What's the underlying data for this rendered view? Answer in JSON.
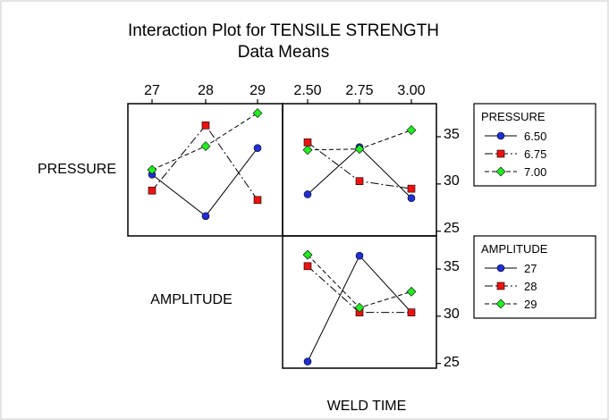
{
  "chart_data": {
    "type": "line",
    "title": "Interaction Plot for TENSILE STRENGTH",
    "subtitle": "Data Means",
    "factors": [
      {
        "name": "PRESSURE",
        "levels": [
          "6.50",
          "6.75",
          "7.00"
        ]
      },
      {
        "name": "AMPLITUDE",
        "levels": [
          "27",
          "28",
          "29"
        ]
      },
      {
        "name": "WELD TIME",
        "levels": [
          "2.50",
          "2.75",
          "3.00"
        ]
      }
    ],
    "y_axis": {
      "ylim": [
        24.5,
        38.5
      ],
      "ticks": [
        "25",
        "30",
        "35"
      ]
    },
    "colors": {
      "blue": "#1f2fd6",
      "red": "#ee1111",
      "green": "#22ee22"
    },
    "legends": [
      {
        "title": "PRESSURE",
        "items": [
          {
            "label": "6.50",
            "color": "blue",
            "marker": "circle",
            "dash": "solid"
          },
          {
            "label": "6.75",
            "color": "red",
            "marker": "square",
            "dash": "dashdot"
          },
          {
            "label": "7.00",
            "color": "green",
            "marker": "diamond",
            "dash": "dashed"
          }
        ]
      },
      {
        "title": "AMPLITUDE",
        "items": [
          {
            "label": "27",
            "color": "blue",
            "marker": "circle",
            "dash": "solid"
          },
          {
            "label": "28",
            "color": "red",
            "marker": "square",
            "dash": "dashdot"
          },
          {
            "label": "29",
            "color": "green",
            "marker": "diamond",
            "dash": "dashed"
          }
        ]
      }
    ],
    "panels": [
      {
        "id": "pressure-by-amplitude",
        "row_factor": "PRESSURE",
        "x_factor": "AMPLITUDE",
        "x": [
          "27",
          "28",
          "29"
        ],
        "series": [
          {
            "name": "6.50",
            "values": [
              31.0,
              26.6,
              33.8
            ]
          },
          {
            "name": "6.75",
            "values": [
              29.3,
              36.2,
              28.3
            ]
          },
          {
            "name": "7.00",
            "values": [
              31.5,
              34.0,
              37.5
            ]
          }
        ]
      },
      {
        "id": "pressure-by-weld-time",
        "row_factor": "PRESSURE",
        "x_factor": "WELD TIME",
        "x": [
          "2.50",
          "2.75",
          "3.00"
        ],
        "series": [
          {
            "name": "6.50",
            "values": [
              28.9,
              33.9,
              28.5
            ]
          },
          {
            "name": "6.75",
            "values": [
              34.4,
              30.3,
              29.5
            ]
          },
          {
            "name": "7.00",
            "values": [
              33.6,
              33.7,
              35.7
            ]
          }
        ]
      },
      {
        "id": "amplitude-by-weld-time",
        "row_factor": "AMPLITUDE",
        "x_factor": "WELD TIME",
        "x": [
          "2.50",
          "2.75",
          "3.00"
        ],
        "series": [
          {
            "name": "27",
            "values": [
              25.2,
              36.4,
              30.4
            ]
          },
          {
            "name": "28",
            "values": [
              35.3,
              30.4,
              30.4
            ]
          },
          {
            "name": "29",
            "values": [
              36.5,
              30.9,
              32.6
            ]
          }
        ]
      }
    ]
  }
}
